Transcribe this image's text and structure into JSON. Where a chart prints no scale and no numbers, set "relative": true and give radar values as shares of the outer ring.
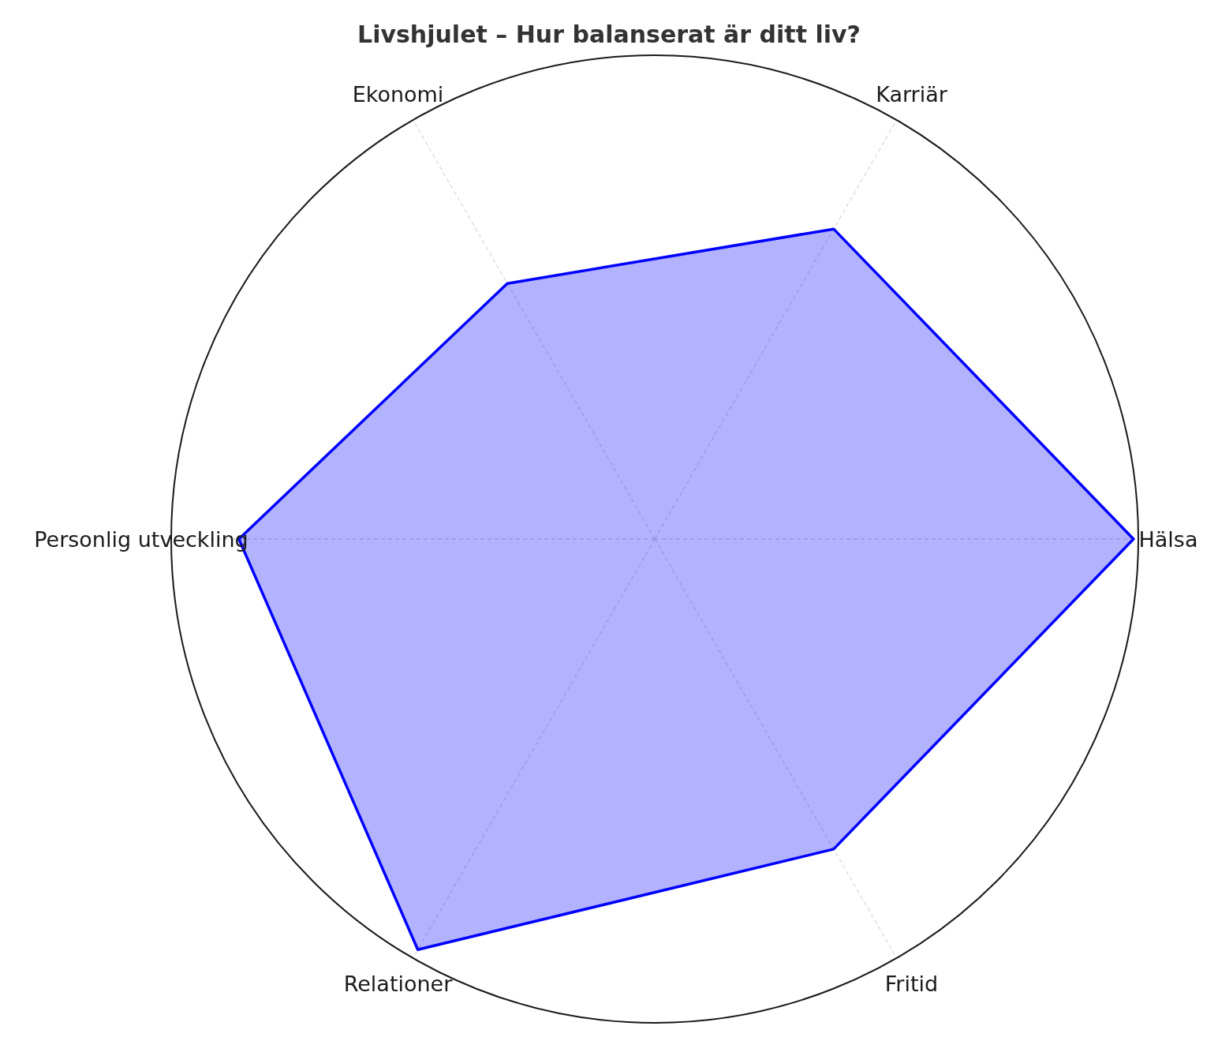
{
  "chart_data": {
    "type": "radar",
    "title": "Livshjulet – Hur balanserat är ditt liv?",
    "relative": true,
    "grid": true,
    "categories": [
      "Karriär",
      "Hälsa",
      "Fritid",
      "Relationer",
      "Personlig utveckling",
      "Ekonomi"
    ],
    "series": [
      {
        "color": "#0000ff",
        "values": [
          0.74,
          0.99,
          0.74,
          0.98,
          0.86,
          0.61
        ]
      }
    ]
  }
}
